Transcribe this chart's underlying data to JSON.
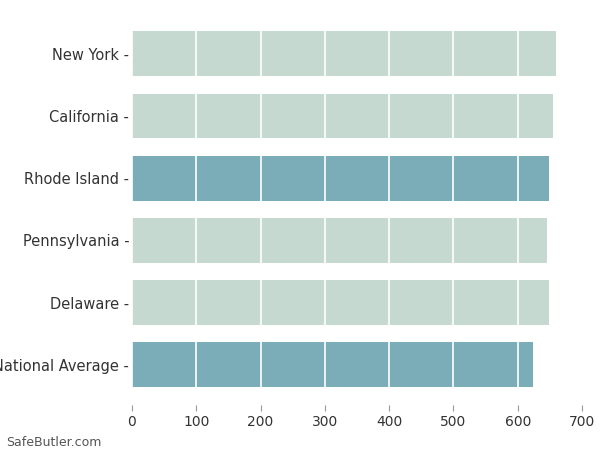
{
  "categories": [
    "New York",
    "California",
    "Rhode Island",
    "Pennsylvania",
    "Delaware",
    "National Average"
  ],
  "values": [
    660,
    655,
    648,
    645,
    648,
    624
  ],
  "bar_colors": [
    "#c5d9d0",
    "#c5d9d0",
    "#7aadb8",
    "#c5d9d0",
    "#c5d9d0",
    "#7aadb8"
  ],
  "xlim": [
    0,
    700
  ],
  "xticks": [
    0,
    100,
    200,
    300,
    400,
    500,
    600,
    700
  ],
  "background_color": "#ffffff",
  "axes_bg_color": "#ffffff",
  "grid_color": "#ffffff",
  "bar_edge_color": "none",
  "fontsize_labels": 10.5,
  "fontsize_ticks": 10,
  "footer_text": "SafeButler.com",
  "footer_fontsize": 9,
  "bar_height": 0.72
}
